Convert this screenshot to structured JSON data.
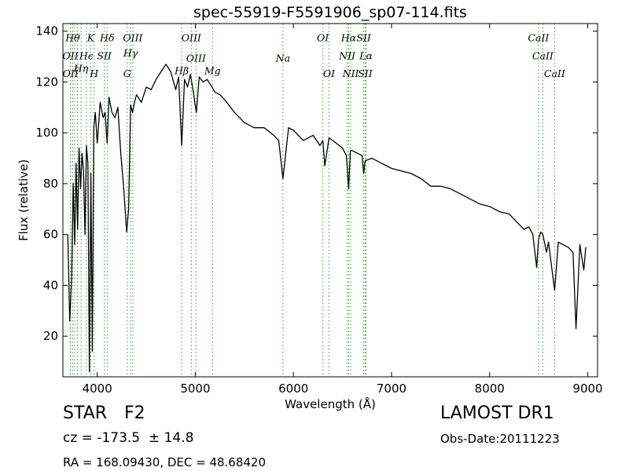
{
  "chart_data": {
    "type": "line",
    "title": "spec-55919-F5591906_sp07-114.fits",
    "xlabel": "Wavelength (Å)",
    "ylabel": "Flux (relative)",
    "xlim": [
      3650,
      9100
    ],
    "ylim": [
      4,
      143
    ],
    "xticks": [
      4000,
      5000,
      6000,
      7000,
      8000,
      9000
    ],
    "yticks": [
      20,
      40,
      60,
      80,
      100,
      120,
      140
    ],
    "line_color": "#000000",
    "marker_color": "#2ca02c",
    "series": [
      {
        "x": [
          3700,
          3720,
          3740,
          3755,
          3770,
          3785,
          3800,
          3815,
          3830,
          3845,
          3860,
          3875,
          3890,
          3905,
          3920,
          3935,
          3950,
          3965,
          3980,
          4000,
          4030,
          4060,
          4080,
          4101,
          4120,
          4150,
          4180,
          4210,
          4240,
          4270,
          4300,
          4320,
          4340,
          4360,
          4380,
          4400,
          4450,
          4500,
          4550,
          4600,
          4650,
          4700,
          4750,
          4800,
          4830,
          4861,
          4890,
          4920,
          4950,
          4980,
          5010,
          5040,
          5080,
          5120,
          5170,
          5200,
          5250,
          5300,
          5400,
          5500,
          5600,
          5700,
          5800,
          5850,
          5893,
          5950,
          6000,
          6100,
          6200,
          6270,
          6300,
          6320,
          6363,
          6400,
          6500,
          6540,
          6563,
          6580,
          6600,
          6650,
          6700,
          6716,
          6731,
          6800,
          6900,
          7000,
          7100,
          7200,
          7300,
          7400,
          7500,
          7600,
          7700,
          7800,
          7900,
          8000,
          8100,
          8200,
          8300,
          8350,
          8400,
          8440,
          8480,
          8498,
          8520,
          8542,
          8580,
          8600,
          8662,
          8700,
          8750,
          8800,
          8850,
          8880,
          8920,
          8960,
          8980
        ],
        "y": [
          60,
          26,
          44,
          80,
          56,
          88,
          62,
          94,
          78,
          92,
          85,
          60,
          95,
          88,
          6,
          84,
          14,
          102,
          108,
          96,
          112,
          106,
          108,
          96,
          114,
          108,
          106,
          110,
          92,
          78,
          61,
          70,
          111,
          108,
          112,
          115,
          112,
          118,
          117,
          121,
          124,
          127,
          124,
          117,
          122,
          95,
          121,
          118,
          123,
          116,
          108,
          122,
          120,
          121,
          118,
          116,
          115,
          113,
          108,
          104,
          102,
          102,
          99,
          97,
          82,
          102,
          101,
          97,
          99,
          95,
          97,
          87,
          98,
          97,
          94,
          91,
          78,
          93,
          93,
          92,
          91,
          84,
          89,
          90,
          88,
          86,
          85,
          84,
          82,
          79,
          79,
          78,
          76,
          74,
          72,
          71,
          69,
          68,
          64,
          62,
          63,
          60,
          47,
          58,
          61,
          60,
          53,
          57,
          38,
          57,
          56,
          55,
          53,
          23,
          56,
          46,
          55
        ]
      }
    ],
    "emission_lines": [
      {
        "label": "Hθ",
        "x": 3750,
        "y": 136
      },
      {
        "label": "K",
        "x": 3934,
        "y": 136
      },
      {
        "label": "Hδ",
        "x": 4101,
        "y": 136
      },
      {
        "label": "OIII",
        "x": 4363,
        "y": 136
      },
      {
        "label": "OIII",
        "x": 4959,
        "y": 136
      },
      {
        "label": "OI",
        "x": 6300,
        "y": 136
      },
      {
        "label": "Hα",
        "x": 6563,
        "y": 136
      },
      {
        "label": "SII",
        "x": 6716,
        "y": 136
      },
      {
        "label": "CaII",
        "x": 8498,
        "y": 136
      },
      {
        "label": "OII",
        "x": 3727,
        "y": 129
      },
      {
        "label": "Hϵ",
        "x": 3889,
        "y": 129
      },
      {
        "label": "SII",
        "x": 4072,
        "y": 129
      },
      {
        "label": "Hγ",
        "x": 4340,
        "y": 130
      },
      {
        "label": "NII",
        "x": 6548,
        "y": 129
      },
      {
        "label": "Lα",
        "x": 6740,
        "y": 129
      },
      {
        "label": "CaII",
        "x": 8542,
        "y": 129
      },
      {
        "label": "Hη",
        "x": 3835,
        "y": 124
      },
      {
        "label": "Na",
        "x": 5893,
        "y": 128
      },
      {
        "label": "OIII",
        "x": 5007,
        "y": 128
      },
      {
        "label": "OII",
        "x": 3728,
        "y": 122
      },
      {
        "label": "H",
        "x": 3968,
        "y": 122
      },
      {
        "label": "G",
        "x": 4305,
        "y": 122
      },
      {
        "label": "Hβ",
        "x": 4861,
        "y": 123
      },
      {
        "label": "Mg",
        "x": 5175,
        "y": 123
      },
      {
        "label": "OI",
        "x": 6363,
        "y": 122
      },
      {
        "label": "NII",
        "x": 6584,
        "y": 122
      },
      {
        "label": "SII",
        "x": 6731,
        "y": 122
      },
      {
        "label": "CaII",
        "x": 8662,
        "y": 122
      }
    ],
    "line_markers": [
      3727,
      3729,
      3750,
      3770,
      3798,
      3835,
      3889,
      3934,
      3968,
      4072,
      4101,
      4305,
      4340,
      4363,
      4861,
      4959,
      5007,
      5175,
      5893,
      6300,
      6363,
      6548,
      6563,
      6584,
      6716,
      6731,
      6740,
      8498,
      8542,
      8662
    ]
  },
  "info": {
    "object_class": "STAR",
    "subclass": "F2",
    "redshift": "cz = -173.5  ± 14.8",
    "coordinates": "RA = 168.09430, DEC = 48.68420",
    "survey": "LAMOST DR1",
    "obs_date": "Obs-Date:20111223"
  }
}
